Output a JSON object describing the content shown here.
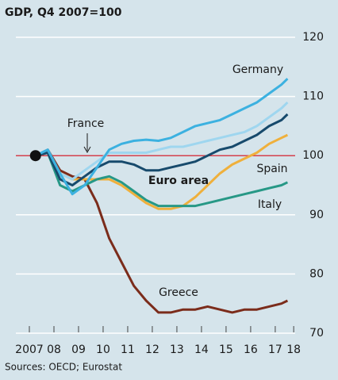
{
  "chart_data": {
    "type": "line",
    "title": "GDP, Q4 2007=100",
    "source": "Sources: OECD; Eurostat",
    "baseline": 100,
    "x": [
      2007.75,
      2008.25,
      2008.75,
      2009.25,
      2009.75,
      2010.25,
      2010.75,
      2011.25,
      2011.75,
      2012.25,
      2012.75,
      2013.25,
      2013.75,
      2014.25,
      2014.75,
      2015.25,
      2015.75,
      2016.25,
      2016.75,
      2017.25,
      2017.75,
      2018.0
    ],
    "series": [
      {
        "name": "Germany",
        "color": "#3cb1e0",
        "values": [
          100,
          101,
          97,
          93.5,
          95,
          98,
          101,
          102,
          102.5,
          102.7,
          102.5,
          103,
          104,
          105,
          105.5,
          106,
          107,
          108,
          109,
          110.5,
          112,
          113
        ]
      },
      {
        "name": "France",
        "color": "#9fd6ef",
        "values": [
          100,
          101,
          97,
          96,
          97.5,
          99,
          100.5,
          100.5,
          100.5,
          100.5,
          101,
          101.5,
          101.5,
          102,
          102.5,
          103,
          103.5,
          104,
          105,
          106.5,
          108,
          109
        ]
      },
      {
        "name": "Euro area",
        "color": "#174a6c",
        "values": [
          100,
          100.5,
          96,
          95,
          96.5,
          98,
          99,
          99,
          98.5,
          97.5,
          97.5,
          98,
          98.5,
          99,
          100,
          101,
          101.5,
          102.5,
          103.5,
          105,
          106,
          107
        ]
      },
      {
        "name": "Spain",
        "color": "#efb03c",
        "values": [
          100,
          100.5,
          97,
          96,
          96,
          96,
          96,
          95,
          93.5,
          92,
          91,
          91,
          91.5,
          93,
          95,
          97,
          98.5,
          99.5,
          100.5,
          102,
          103,
          103.5
        ]
      },
      {
        "name": "Italy",
        "color": "#279886",
        "values": [
          100,
          100.5,
          95,
          94,
          95,
          96,
          96.5,
          95.5,
          94,
          92.5,
          91.5,
          91.5,
          91.5,
          91.5,
          92,
          92.5,
          93,
          93.5,
          94,
          94.5,
          95,
          95.5
        ]
      },
      {
        "name": "Greece",
        "color": "#7b2c1b",
        "values": [
          100,
          101,
          97.5,
          96.5,
          96,
          92,
          86,
          82,
          78,
          75.5,
          73.5,
          73.5,
          74,
          74,
          74.5,
          74,
          73.5,
          74,
          74,
          74.5,
          75,
          75.5
        ]
      }
    ],
    "xlim": [
      2007,
      2018.6
    ],
    "xticks": [
      {
        "value": 2007.5,
        "label": "2007"
      },
      {
        "value": 2008.5,
        "label": "08"
      },
      {
        "value": 2009.5,
        "label": "09"
      },
      {
        "value": 2010.5,
        "label": "10"
      },
      {
        "value": 2011.5,
        "label": "11"
      },
      {
        "value": 2012.5,
        "label": "12"
      },
      {
        "value": 2013.5,
        "label": "13"
      },
      {
        "value": 2014.5,
        "label": "14"
      },
      {
        "value": 2015.5,
        "label": "15"
      },
      {
        "value": 2016.5,
        "label": "16"
      },
      {
        "value": 2017.5,
        "label": "17"
      },
      {
        "value": 2018.25,
        "label": "18"
      }
    ],
    "ylim": [
      70,
      120
    ],
    "yticks": [
      70,
      80,
      90,
      100,
      110,
      120
    ],
    "grid": true
  }
}
